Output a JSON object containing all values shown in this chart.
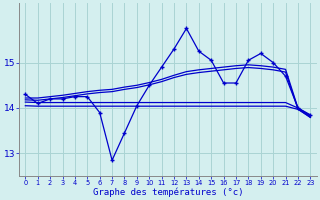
{
  "xlabel": "Graphe des températures (°c)",
  "bg_color": "#d4efef",
  "grid_color": "#aad4d4",
  "line_color": "#0000cc",
  "x_ticks": [
    0,
    1,
    2,
    3,
    4,
    5,
    6,
    7,
    8,
    9,
    10,
    11,
    12,
    13,
    14,
    15,
    16,
    17,
    18,
    19,
    20,
    21,
    22,
    23
  ],
  "y_ticks": [
    13,
    14,
    15
  ],
  "ylim": [
    12.5,
    16.3
  ],
  "xlim": [
    -0.5,
    23.5
  ],
  "main_temps": [
    14.3,
    14.1,
    14.2,
    14.2,
    14.25,
    14.25,
    13.9,
    12.85,
    13.45,
    14.05,
    14.5,
    14.9,
    15.3,
    15.75,
    15.25,
    15.05,
    14.55,
    14.55,
    15.05,
    15.2,
    15.0,
    14.7,
    14.0,
    13.85
  ],
  "trend_rise1": [
    14.22,
    14.22,
    14.25,
    14.28,
    14.32,
    14.36,
    14.39,
    14.41,
    14.46,
    14.5,
    14.56,
    14.63,
    14.72,
    14.8,
    14.84,
    14.87,
    14.9,
    14.93,
    14.95,
    14.93,
    14.9,
    14.85,
    14.0,
    13.83
  ],
  "trend_rise2": [
    14.18,
    14.17,
    14.2,
    14.23,
    14.27,
    14.31,
    14.34,
    14.36,
    14.41,
    14.45,
    14.51,
    14.58,
    14.67,
    14.74,
    14.78,
    14.81,
    14.84,
    14.87,
    14.89,
    14.87,
    14.84,
    14.79,
    13.98,
    13.79
  ],
  "trend_flat1": [
    14.13,
    14.12,
    14.12,
    14.12,
    14.12,
    14.12,
    14.12,
    14.12,
    14.12,
    14.12,
    14.12,
    14.12,
    14.12,
    14.12,
    14.12,
    14.12,
    14.12,
    14.12,
    14.12,
    14.12,
    14.12,
    14.12,
    14.0,
    13.82
  ],
  "trend_flat2": [
    14.05,
    14.04,
    14.04,
    14.04,
    14.04,
    14.04,
    14.04,
    14.04,
    14.04,
    14.04,
    14.04,
    14.04,
    14.04,
    14.04,
    14.04,
    14.04,
    14.04,
    14.04,
    14.04,
    14.04,
    14.04,
    14.04,
    13.97,
    13.8
  ]
}
